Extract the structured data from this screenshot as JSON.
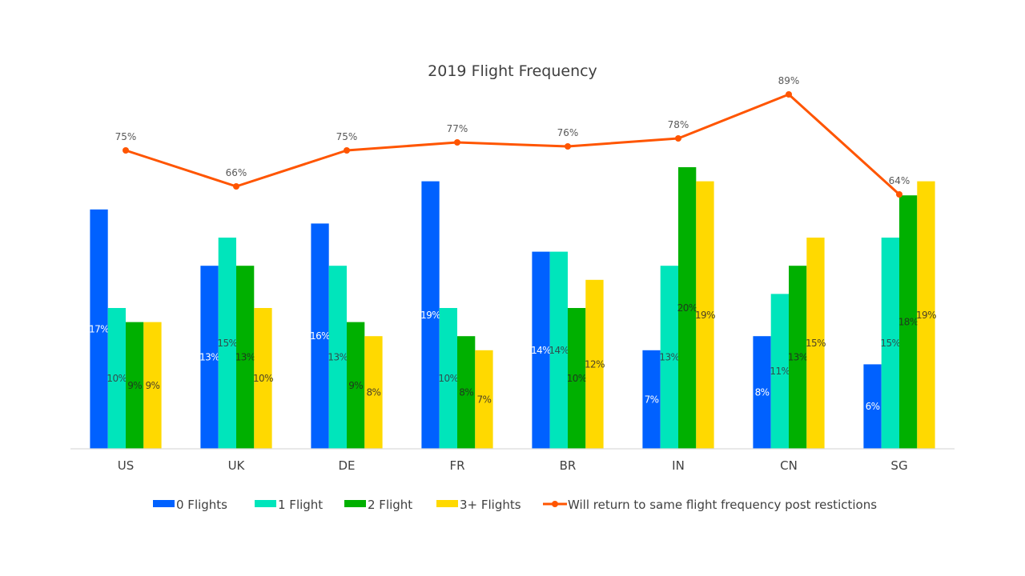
{
  "chart_data": {
    "type": "bar",
    "title": "2019 Flight Frequency",
    "xlabel": "",
    "ylabel": "",
    "categories": [
      "US",
      "UK",
      "DE",
      "FR",
      "BR",
      "IN",
      "CN",
      "SG"
    ],
    "series": [
      {
        "name": "0 Flights",
        "type": "bar",
        "color": "#0061FF",
        "label_color": "#ffffff",
        "values": [
          17,
          13,
          16,
          19,
          14,
          7,
          8,
          6
        ]
      },
      {
        "name": "1 Flight",
        "type": "bar",
        "color": "#00E5BB",
        "label_color": "#2f4f4f",
        "values": [
          10,
          15,
          13,
          10,
          14,
          13,
          11,
          15
        ]
      },
      {
        "name": "2 Flight",
        "type": "bar",
        "color": "#00B000",
        "label_color": "#1e3a1e",
        "values": [
          9,
          13,
          9,
          8,
          10,
          20,
          13,
          18
        ]
      },
      {
        "name": "3+ Flights",
        "type": "bar",
        "color": "#FFD900",
        "label_color": "#4d4326",
        "values": [
          9,
          10,
          8,
          7,
          12,
          19,
          15,
          19
        ]
      },
      {
        "name": "Will return to same flight frequency post restictions",
        "type": "line",
        "axis": "secondary",
        "color": "#FF5500",
        "values": [
          75,
          66,
          75,
          77,
          76,
          78,
          89,
          64
        ]
      }
    ],
    "value_format": "percent",
    "primary_ylim": [
      0,
      28
    ],
    "secondary_ylim": [
      0,
      100
    ],
    "grid": false,
    "axis_ticks_shown": false,
    "legend_position": "bottom"
  }
}
